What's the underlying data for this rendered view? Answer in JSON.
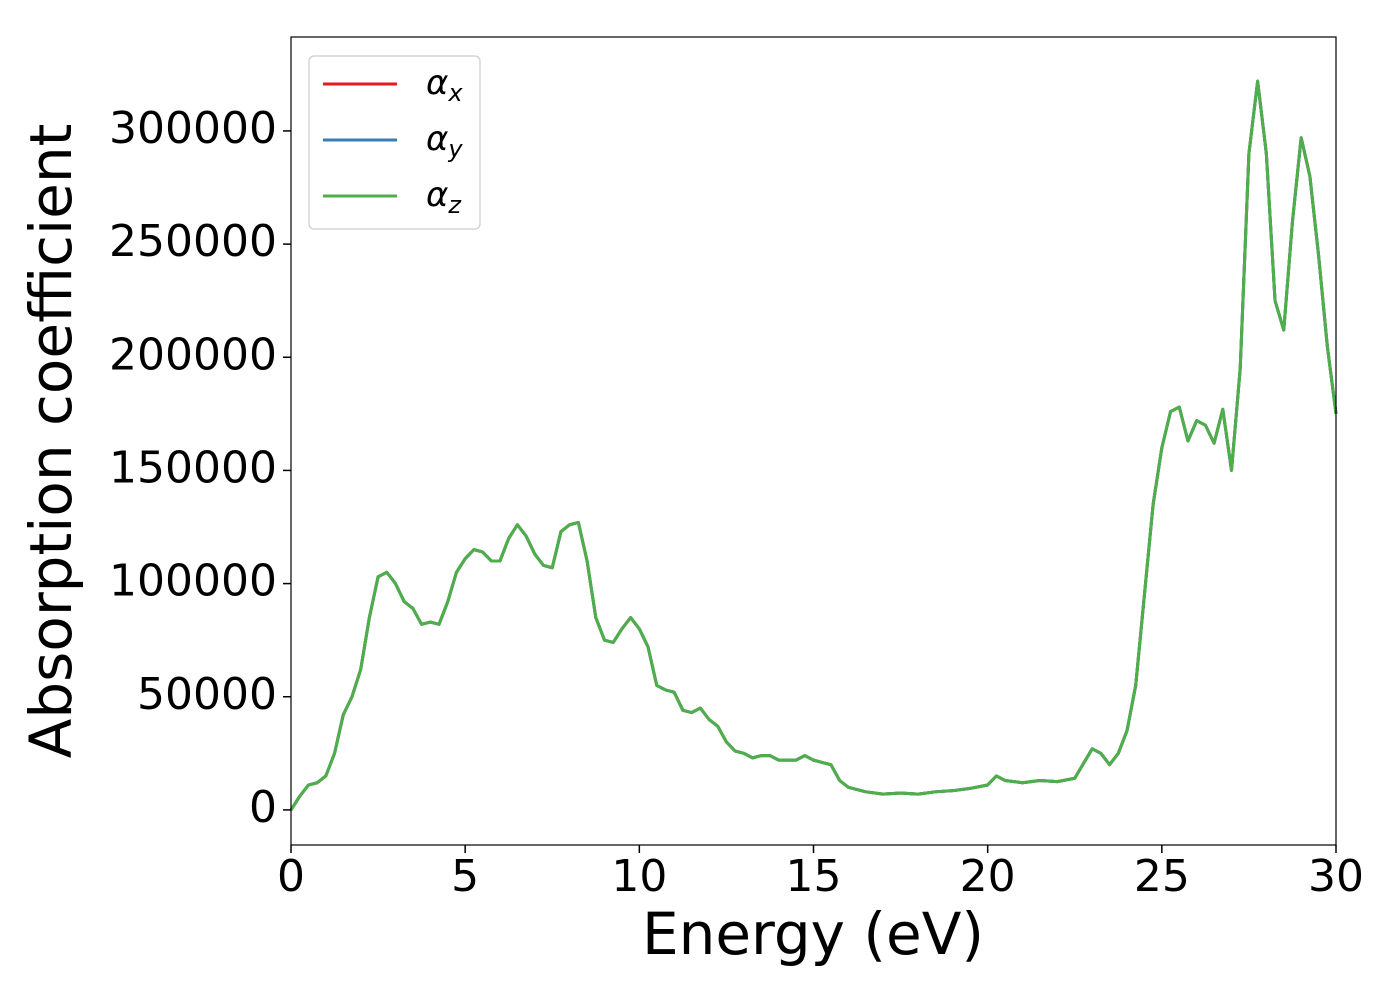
{
  "chart_data": {
    "type": "line",
    "xlabel": "Energy (eV)",
    "ylabel": "Absorption coefficient",
    "x": [
      0,
      0.25,
      0.5,
      0.75,
      1.0,
      1.25,
      1.5,
      1.75,
      2.0,
      2.25,
      2.5,
      2.75,
      3.0,
      3.25,
      3.5,
      3.75,
      4.0,
      4.25,
      4.5,
      4.75,
      5.0,
      5.25,
      5.5,
      5.75,
      6.0,
      6.25,
      6.5,
      6.75,
      7.0,
      7.25,
      7.5,
      7.75,
      8.0,
      8.25,
      8.5,
      8.75,
      9.0,
      9.25,
      9.5,
      9.75,
      10.0,
      10.25,
      10.5,
      10.75,
      11.0,
      11.25,
      11.5,
      11.75,
      12.0,
      12.25,
      12.5,
      12.75,
      13.0,
      13.25,
      13.5,
      13.75,
      14.0,
      14.25,
      14.5,
      14.75,
      15.0,
      15.25,
      15.5,
      15.75,
      16.0,
      16.5,
      17.0,
      17.5,
      18.0,
      18.5,
      19.0,
      19.5,
      20.0,
      20.25,
      20.5,
      21.0,
      21.5,
      22.0,
      22.5,
      23.0,
      23.25,
      23.5,
      23.75,
      24.0,
      24.25,
      24.5,
      24.75,
      25.0,
      25.25,
      25.5,
      25.75,
      26.0,
      26.25,
      26.5,
      26.75,
      27.0,
      27.25,
      27.5,
      27.75,
      28.0,
      28.25,
      28.5,
      28.75,
      29.0,
      29.25,
      29.5,
      29.75,
      30.0
    ],
    "series": [
      {
        "name": "αx",
        "color": "#e41a1c",
        "values": [
          0,
          6000,
          11000,
          12000,
          15000,
          25000,
          42000,
          50000,
          62000,
          85000,
          103000,
          105000,
          100000,
          92000,
          89000,
          82000,
          83000,
          82000,
          92000,
          105000,
          111000,
          115000,
          114000,
          110000,
          110000,
          120000,
          126000,
          121000,
          113000,
          108000,
          107000,
          123000,
          126000,
          127000,
          110000,
          85000,
          75000,
          74000,
          80000,
          85000,
          80000,
          72000,
          55000,
          53000,
          52000,
          44000,
          43000,
          45000,
          40000,
          37000,
          30000,
          26000,
          25000,
          23000,
          24000,
          24000,
          22000,
          22000,
          22000,
          24000,
          22000,
          21000,
          20000,
          13000,
          10000,
          8000,
          7000,
          7500,
          7000,
          8000,
          8500,
          9500,
          11000,
          15000,
          13000,
          12000,
          13000,
          12500,
          14000,
          27000,
          25000,
          20000,
          25000,
          35000,
          55000,
          95000,
          135000,
          160000,
          176000,
          178000,
          163000,
          172000,
          170000,
          162000,
          177000,
          150000,
          195000,
          290000,
          322000,
          290000,
          225000,
          212000,
          260000,
          297000,
          280000,
          245000,
          205000,
          175000
        ]
      },
      {
        "name": "αy",
        "color": "#377eb8",
        "values": [
          0,
          6000,
          11000,
          12000,
          15000,
          25000,
          42000,
          50000,
          62000,
          85000,
          103000,
          105000,
          100000,
          92000,
          89000,
          82000,
          83000,
          82000,
          92000,
          105000,
          111000,
          115000,
          114000,
          110000,
          110000,
          120000,
          126000,
          121000,
          113000,
          108000,
          107000,
          123000,
          126000,
          127000,
          110000,
          85000,
          75000,
          74000,
          80000,
          85000,
          80000,
          72000,
          55000,
          53000,
          52000,
          44000,
          43000,
          45000,
          40000,
          37000,
          30000,
          26000,
          25000,
          23000,
          24000,
          24000,
          22000,
          22000,
          22000,
          24000,
          22000,
          21000,
          20000,
          13000,
          10000,
          8000,
          7000,
          7500,
          7000,
          8000,
          8500,
          9500,
          11000,
          15000,
          13000,
          12000,
          13000,
          12500,
          14000,
          27000,
          25000,
          20000,
          25000,
          35000,
          55000,
          95000,
          135000,
          160000,
          176000,
          178000,
          163000,
          172000,
          170000,
          162000,
          177000,
          150000,
          195000,
          290000,
          322000,
          290000,
          225000,
          212000,
          260000,
          297000,
          280000,
          245000,
          205000,
          175000
        ]
      },
      {
        "name": "αz",
        "color": "#4daf4a",
        "values": [
          0,
          6000,
          11000,
          12000,
          15000,
          25000,
          42000,
          50000,
          62000,
          85000,
          103000,
          105000,
          100000,
          92000,
          89000,
          82000,
          83000,
          82000,
          92000,
          105000,
          111000,
          115000,
          114000,
          110000,
          110000,
          120000,
          126000,
          121000,
          113000,
          108000,
          107000,
          123000,
          126000,
          127000,
          110000,
          85000,
          75000,
          74000,
          80000,
          85000,
          80000,
          72000,
          55000,
          53000,
          52000,
          44000,
          43000,
          45000,
          40000,
          37000,
          30000,
          26000,
          25000,
          23000,
          24000,
          24000,
          22000,
          22000,
          22000,
          24000,
          22000,
          21000,
          20000,
          13000,
          10000,
          8000,
          7000,
          7500,
          7000,
          8000,
          8500,
          9500,
          11000,
          15000,
          13000,
          12000,
          13000,
          12500,
          14000,
          27000,
          25000,
          20000,
          25000,
          35000,
          55000,
          95000,
          135000,
          160000,
          176000,
          178000,
          163000,
          172000,
          170000,
          162000,
          177000,
          150000,
          195000,
          290000,
          322000,
          290000,
          225000,
          212000,
          260000,
          297000,
          280000,
          245000,
          205000,
          175000
        ]
      }
    ],
    "xlim": [
      0,
      30
    ],
    "xticks": [
      0,
      5,
      10,
      15,
      20,
      25,
      30
    ],
    "ylim": [
      -15500,
      341500
    ],
    "yticks": [
      0,
      50000,
      100000,
      150000,
      200000,
      250000,
      300000
    ],
    "legend": "upper left",
    "grid": false
  }
}
